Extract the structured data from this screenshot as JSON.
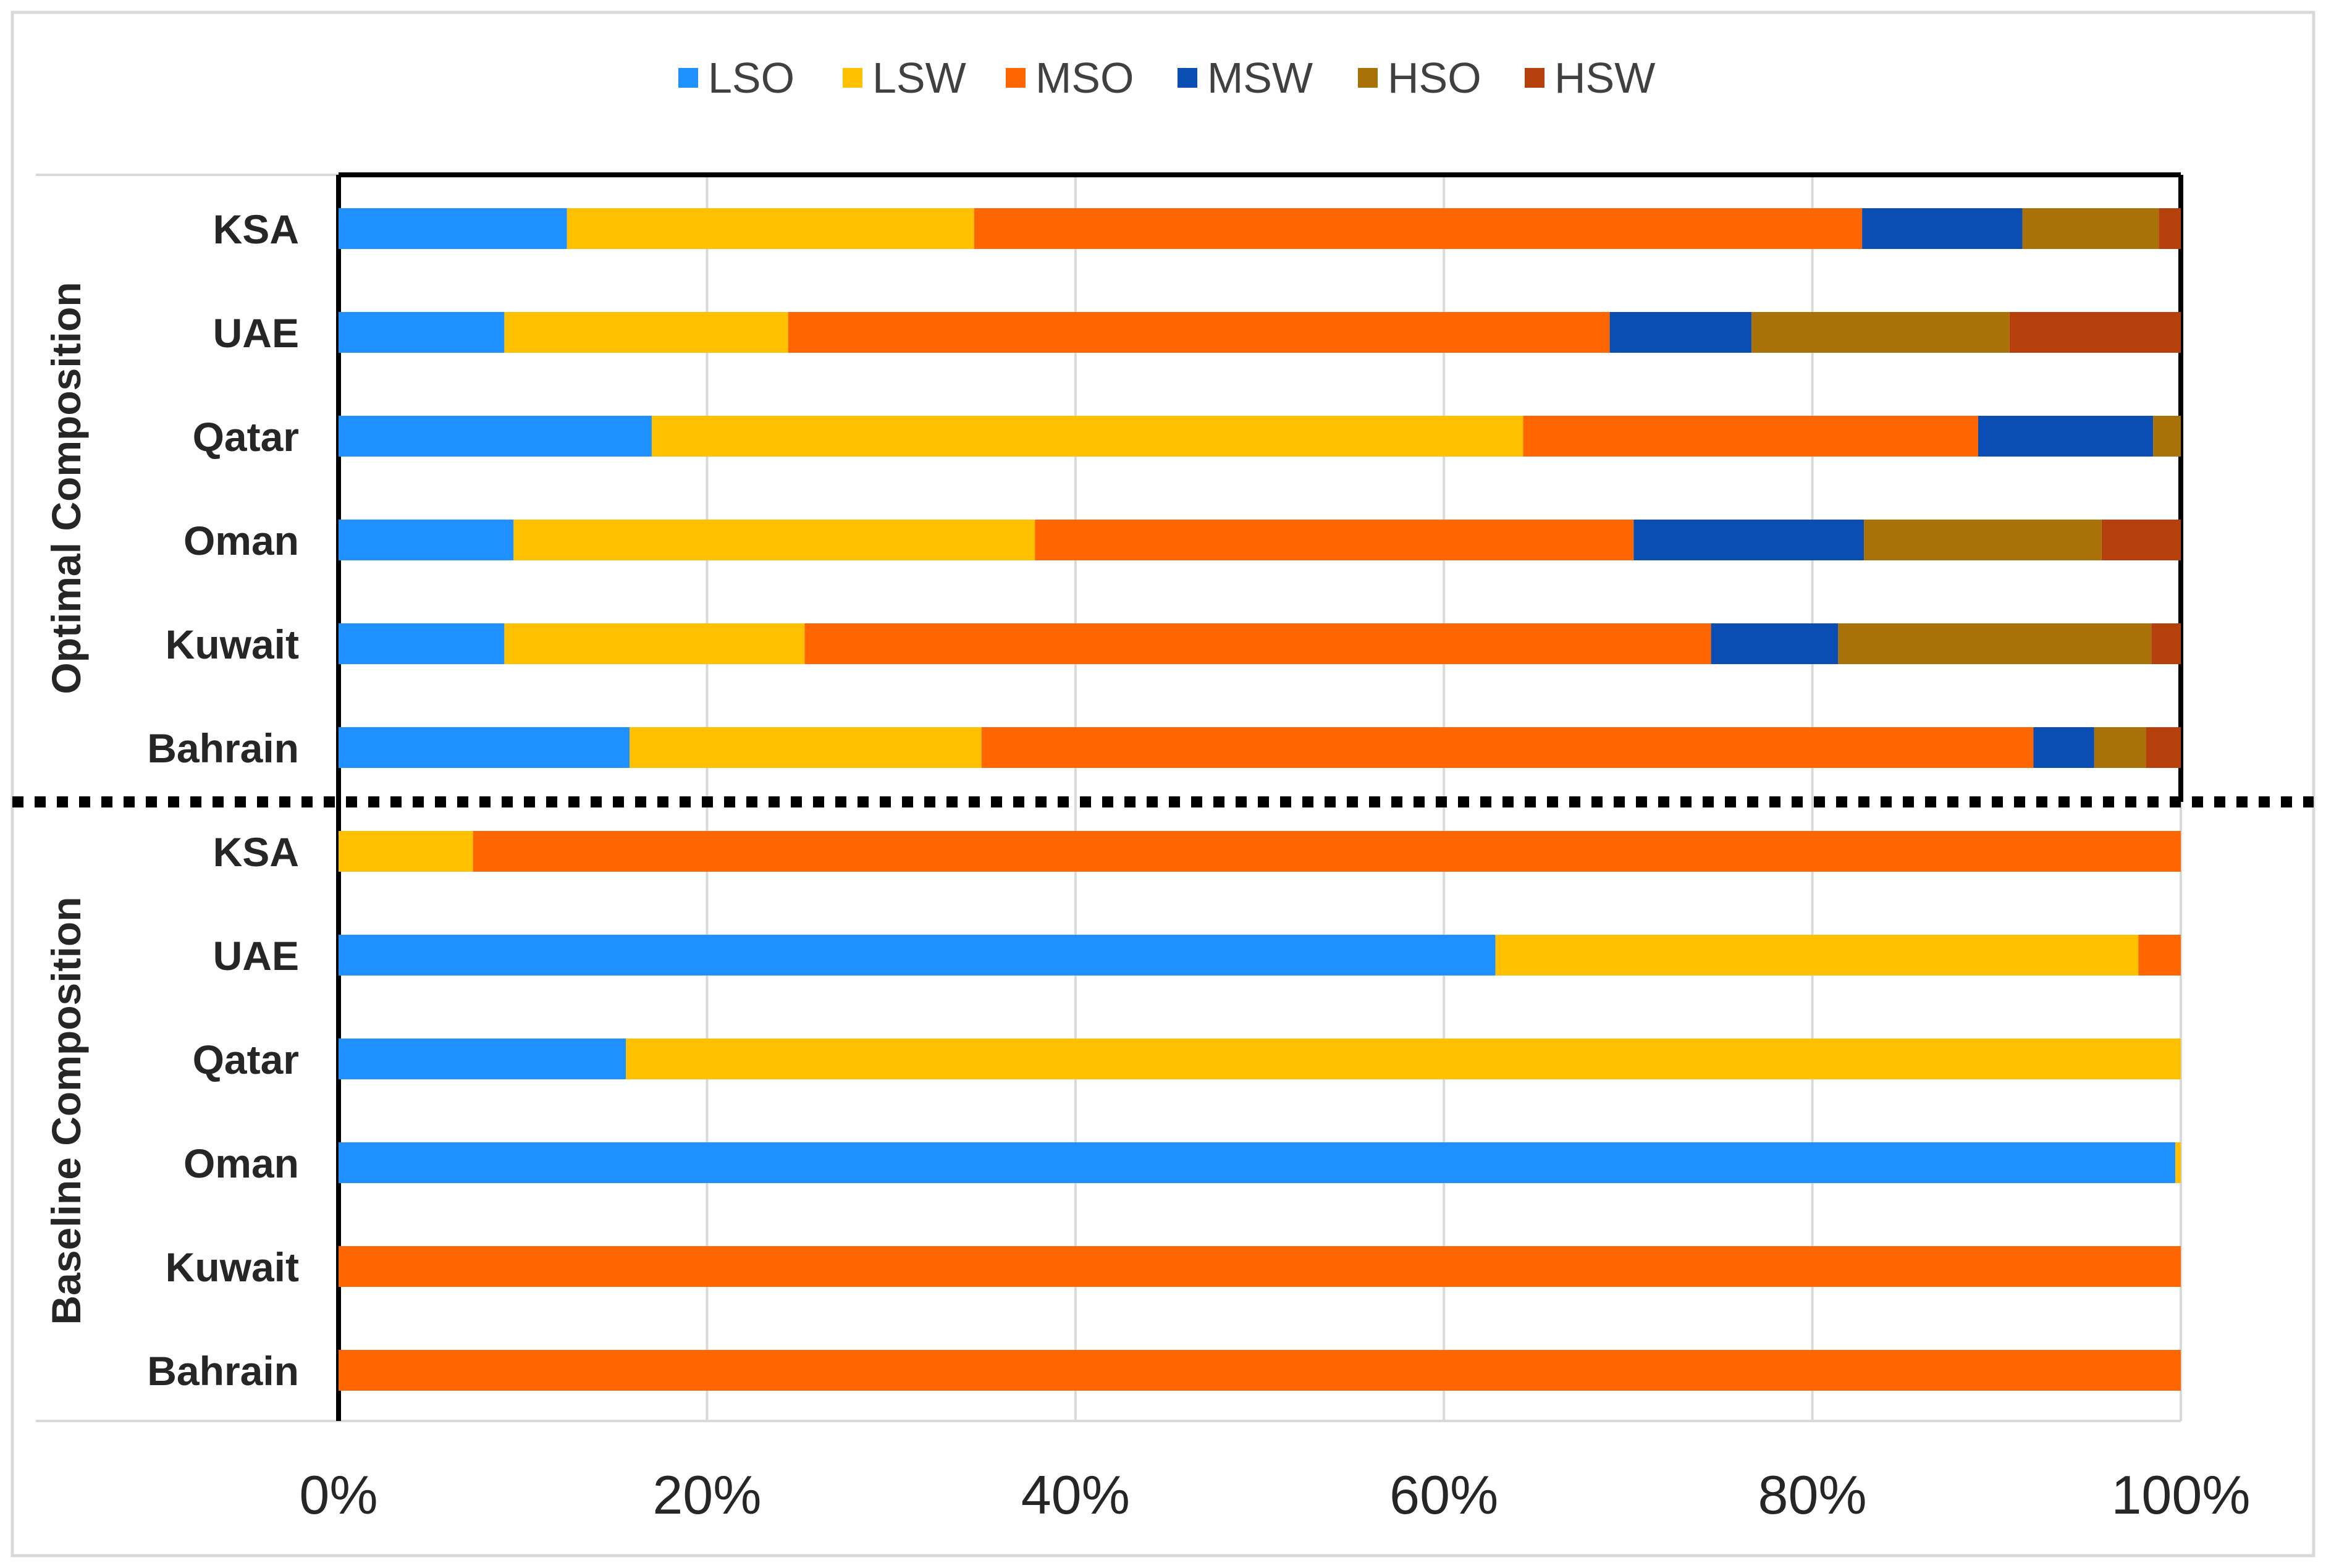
{
  "chart_data": {
    "type": "bar",
    "orientation": "horizontal",
    "stacked": "percent",
    "legend_position": "top",
    "grid": true,
    "xlim": [
      0,
      100
    ],
    "x_ticks": [
      "0%",
      "20%",
      "40%",
      "60%",
      "80%",
      "100%"
    ],
    "groups": [
      {
        "label": "Optimal Composition",
        "categories": [
          "KSA",
          "UAE",
          "Qatar",
          "Oman",
          "Kuwait",
          "Bahrain"
        ],
        "series": [
          {
            "name": "LSO",
            "values": [
              12.4,
              9.0,
              17.0,
              9.5,
              9.0,
              15.8
            ]
          },
          {
            "name": "LSW",
            "values": [
              22.1,
              15.4,
              47.3,
              28.3,
              16.3,
              19.1
            ]
          },
          {
            "name": "MSO",
            "values": [
              48.2,
              44.6,
              24.7,
              32.5,
              49.2,
              57.1
            ]
          },
          {
            "name": "MSW",
            "values": [
              8.7,
              7.7,
              9.5,
              12.5,
              6.9,
              3.3
            ]
          },
          {
            "name": "HSO",
            "values": [
              7.4,
              14.0,
              1.5,
              12.9,
              17.0,
              2.8
            ]
          },
          {
            "name": "HSW",
            "values": [
              1.2,
              9.3,
              0.0,
              4.3,
              1.6,
              1.9
            ]
          }
        ]
      },
      {
        "label": "Baseline Composition",
        "categories": [
          "KSA",
          "UAE",
          "Qatar",
          "Oman",
          "Kuwait",
          "Bahrain"
        ],
        "series": [
          {
            "name": "LSO",
            "values": [
              0.0,
              62.8,
              15.6,
              99.7,
              0.0,
              0.0
            ]
          },
          {
            "name": "LSW",
            "values": [
              7.3,
              34.9,
              84.4,
              0.3,
              0.0,
              0.0
            ]
          },
          {
            "name": "MSO",
            "values": [
              92.7,
              2.3,
              0.0,
              0.0,
              100.0,
              100.0
            ]
          },
          {
            "name": "MSW",
            "values": [
              0,
              0,
              0,
              0,
              0,
              0
            ]
          },
          {
            "name": "HSO",
            "values": [
              0,
              0,
              0,
              0,
              0,
              0
            ]
          },
          {
            "name": "HSW",
            "values": [
              0,
              0,
              0,
              0,
              0,
              0
            ]
          }
        ]
      }
    ],
    "colors": {
      "LSO": "#1e90ff",
      "LSW": "#ffc000",
      "MSO": "#ff6600",
      "MSW": "#0a4eb3",
      "HSO": "#a97208",
      "HSW": "#b5400c"
    }
  }
}
